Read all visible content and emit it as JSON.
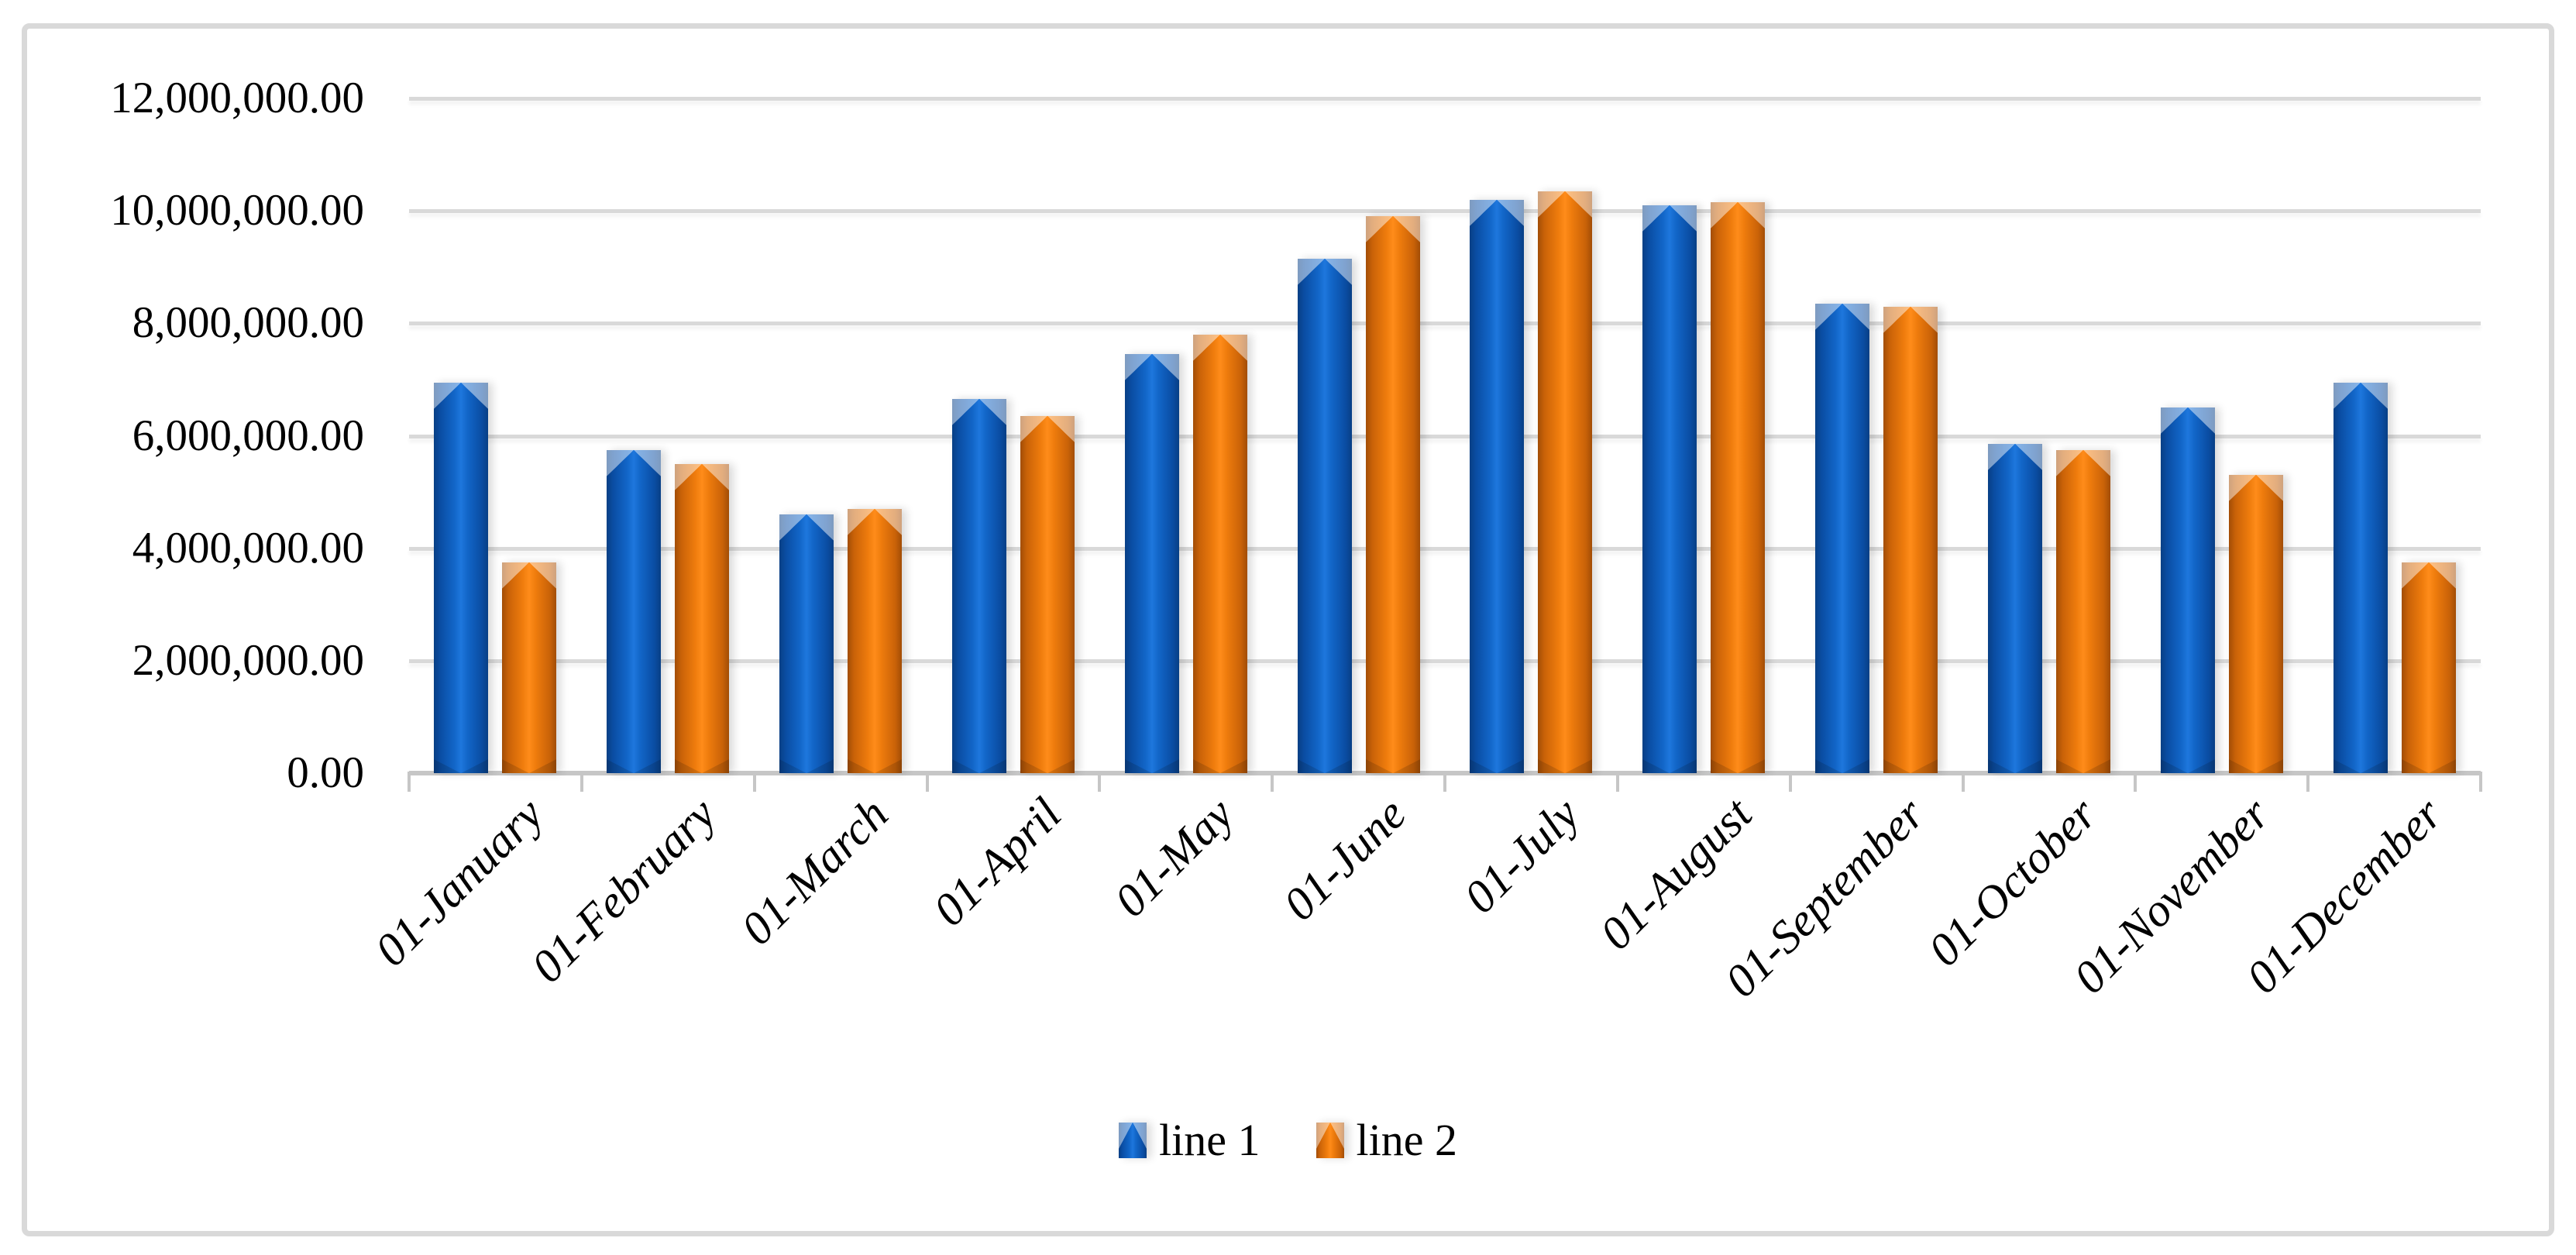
{
  "figure": {
    "background": "#ffffff",
    "frame_border_color": "#d9d9d9",
    "gridline_color": "#d9d9d9",
    "axis_line_color": "#c6c6c6",
    "text_color": "#000000"
  },
  "chart_data": {
    "type": "bar",
    "title": "",
    "xlabel": "",
    "ylabel": "",
    "grid": true,
    "legend_position": "bottom",
    "ylim": [
      0,
      12000000
    ],
    "ytick_interval": 2000000,
    "ytick_labels": [
      "0.00",
      "2,000,000.00",
      "4,000,000.00",
      "6,000,000.00",
      "8,000,000.00",
      "10,000,000.00",
      "12,000,000.00"
    ],
    "categories": [
      "01-January",
      "01-February",
      "01-March",
      "01-April",
      "01-May",
      "01-June",
      "01-July",
      "01-August",
      "01-September",
      "01-October",
      "01-November",
      "01-December"
    ],
    "series": [
      {
        "name": "line 1",
        "color": "#1266c8",
        "values": [
          6950000,
          5750000,
          4600000,
          6650000,
          7450000,
          9150000,
          10200000,
          10100000,
          8350000,
          5850000,
          6500000,
          6950000
        ]
      },
      {
        "name": "line 2",
        "color": "#ef7c0d",
        "values": [
          3750000,
          5500000,
          4700000,
          6350000,
          7800000,
          9900000,
          10350000,
          10150000,
          8300000,
          5750000,
          5300000,
          3750000
        ]
      }
    ]
  }
}
